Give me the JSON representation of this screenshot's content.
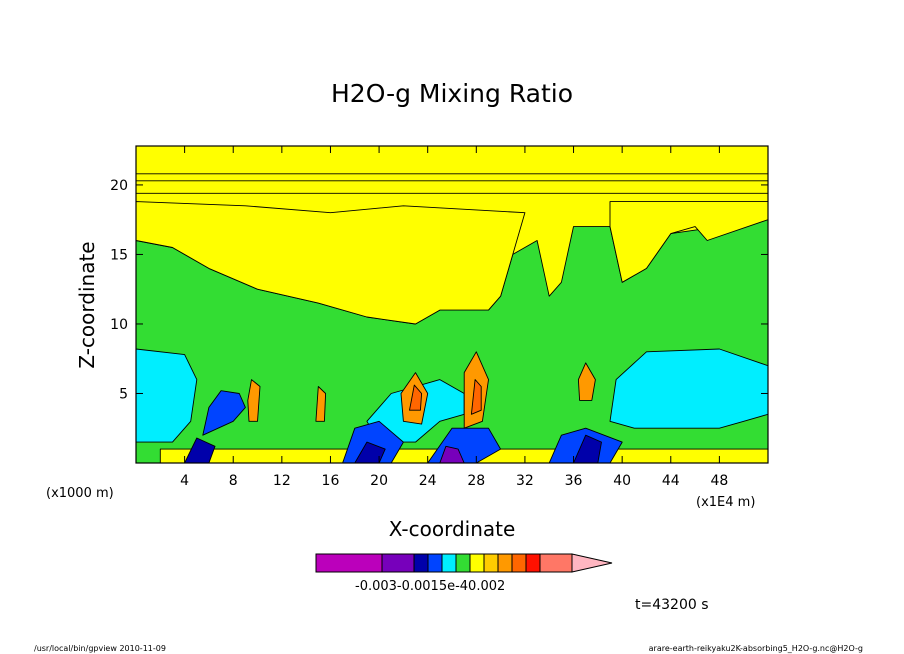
{
  "chart_data": {
    "type": "heatmap",
    "title": "H2O-g Mixing Ratio",
    "xlabel": "X-coordinate",
    "ylabel": "Z-coordinate",
    "x_unit_left": "(x1000 m)",
    "x_unit_right": "(x1E4 m)",
    "xlim": [
      0,
      52
    ],
    "ylim": [
      0,
      22.8
    ],
    "xticks": [
      4,
      8,
      12,
      16,
      20,
      24,
      28,
      32,
      36,
      40,
      44,
      48
    ],
    "yticks": [
      5,
      10,
      15,
      20
    ],
    "colorbar": {
      "label": "-0.003-0.0015e-40.002",
      "colors": [
        "#bb00bb",
        "#7700bb",
        "#0000aa",
        "#0044ff",
        "#00eeff",
        "#33dd33",
        "#ffff00",
        "#ffcc00",
        "#ff9900",
        "#ff6600",
        "#ff1100",
        "#ff7766",
        "#ffb6c1"
      ]
    },
    "regions": [
      {
        "level": "green",
        "color": "#33dd33",
        "polygon": [
          [
            0,
            0
          ],
          [
            52,
            0
          ],
          [
            52,
            17.5
          ],
          [
            44,
            16.5
          ],
          [
            42,
            14
          ],
          [
            40,
            13
          ],
          [
            39,
            17
          ],
          [
            36,
            17
          ],
          [
            35,
            13
          ],
          [
            34,
            12
          ],
          [
            33,
            16
          ],
          [
            31,
            15
          ],
          [
            30,
            12
          ],
          [
            29,
            11
          ],
          [
            25,
            11
          ],
          [
            23,
            10
          ],
          [
            19,
            10.5
          ],
          [
            15,
            11.5
          ],
          [
            10,
            12.5
          ],
          [
            6,
            14
          ],
          [
            3,
            15.5
          ],
          [
            0,
            16
          ]
        ]
      },
      {
        "level": "yellow-upper",
        "color": "#ffff00",
        "polygon": [
          [
            0,
            16
          ],
          [
            3,
            15.5
          ],
          [
            6,
            14
          ],
          [
            10,
            12.5
          ],
          [
            15,
            11.5
          ],
          [
            19,
            10.5
          ],
          [
            23,
            10
          ],
          [
            25,
            11
          ],
          [
            29,
            11
          ],
          [
            30,
            12
          ],
          [
            31,
            15
          ],
          [
            32,
            18
          ],
          [
            22,
            18.5
          ],
          [
            16,
            18
          ],
          [
            9,
            18.5
          ],
          [
            0,
            18.8
          ]
        ]
      },
      {
        "level": "yellow-band",
        "color": "#ffff00",
        "polygon": [
          [
            0,
            19.4
          ],
          [
            52,
            19.4
          ],
          [
            52,
            20.3
          ],
          [
            0,
            20.3
          ]
        ]
      },
      {
        "level": "yellow-top",
        "color": "#ffff00",
        "polygon": [
          [
            0,
            20.8
          ],
          [
            52,
            20.8
          ],
          [
            52,
            22.8
          ],
          [
            0,
            22.8
          ]
        ]
      },
      {
        "level": "yellow-right",
        "color": "#ffff00",
        "polygon": [
          [
            39,
            17
          ],
          [
            40,
            13
          ],
          [
            42,
            14
          ],
          [
            44,
            16.5
          ],
          [
            46,
            17
          ],
          [
            47,
            16
          ],
          [
            52,
            17.5
          ],
          [
            52,
            18.8
          ],
          [
            39,
            18.8
          ]
        ]
      },
      {
        "level": "yellow-low",
        "color": "#ffff00",
        "polygon": [
          [
            2,
            0
          ],
          [
            52,
            0
          ],
          [
            52,
            1
          ],
          [
            2,
            1
          ]
        ]
      },
      {
        "level": "cyan-left",
        "color": "#00eeff",
        "polygon": [
          [
            0,
            1.5
          ],
          [
            3,
            1.5
          ],
          [
            4.5,
            3
          ],
          [
            5,
            6
          ],
          [
            4,
            7.8
          ],
          [
            0,
            8.2
          ]
        ]
      },
      {
        "level": "cyan-right",
        "color": "#00eeff",
        "polygon": [
          [
            39,
            3
          ],
          [
            41,
            2.5
          ],
          [
            48,
            2.5
          ],
          [
            50,
            3
          ],
          [
            52,
            3.5
          ],
          [
            52,
            7
          ],
          [
            48,
            8.2
          ],
          [
            42,
            8
          ],
          [
            39.5,
            6
          ]
        ]
      },
      {
        "level": "cyan-mid",
        "color": "#00eeff",
        "polygon": [
          [
            20,
            1.5
          ],
          [
            23,
            1.5
          ],
          [
            25,
            3
          ],
          [
            27,
            3.5
          ],
          [
            27,
            5
          ],
          [
            25,
            6
          ],
          [
            21,
            5
          ],
          [
            19,
            3
          ]
        ]
      },
      {
        "level": "blue-1",
        "color": "#0044ff",
        "polygon": [
          [
            5.5,
            2
          ],
          [
            8,
            3
          ],
          [
            9,
            4
          ],
          [
            8.5,
            5
          ],
          [
            7,
            5.2
          ],
          [
            6,
            4
          ]
        ]
      },
      {
        "level": "blue-2",
        "color": "#0044ff",
        "polygon": [
          [
            17,
            0
          ],
          [
            21,
            0
          ],
          [
            22,
            1.5
          ],
          [
            20,
            3
          ],
          [
            18,
            2.5
          ]
        ]
      },
      {
        "level": "blue-3",
        "color": "#0044ff",
        "polygon": [
          [
            24,
            0
          ],
          [
            28,
            0
          ],
          [
            30,
            1
          ],
          [
            29,
            2.5
          ],
          [
            26,
            2.5
          ]
        ]
      },
      {
        "level": "blue-4",
        "color": "#0044ff",
        "polygon": [
          [
            34,
            0
          ],
          [
            39,
            0
          ],
          [
            40,
            1.5
          ],
          [
            37,
            2.5
          ],
          [
            35,
            2
          ]
        ]
      },
      {
        "level": "navy-1",
        "color": "#0000aa",
        "polygon": [
          [
            4,
            0
          ],
          [
            6,
            0
          ],
          [
            6.5,
            1.2
          ],
          [
            5,
            1.8
          ]
        ]
      },
      {
        "level": "navy-2",
        "color": "#0000aa",
        "polygon": [
          [
            18,
            0
          ],
          [
            20,
            0
          ],
          [
            20.5,
            1
          ],
          [
            19,
            1.5
          ]
        ]
      },
      {
        "level": "navy-3",
        "color": "#0000aa",
        "polygon": [
          [
            36,
            0
          ],
          [
            38,
            0
          ],
          [
            38.3,
            1.5
          ],
          [
            37,
            2
          ]
        ]
      },
      {
        "level": "purple-1",
        "color": "#7700bb",
        "polygon": [
          [
            25,
            0
          ],
          [
            27,
            0
          ],
          [
            26.5,
            1
          ],
          [
            25.5,
            1.2
          ]
        ]
      },
      {
        "level": "orange-1",
        "color": "#ff9900",
        "polygon": [
          [
            22,
            3
          ],
          [
            23.5,
            2.8
          ],
          [
            24,
            5
          ],
          [
            23,
            6.5
          ],
          [
            21.8,
            5
          ]
        ]
      },
      {
        "level": "orange-2",
        "color": "#ff9900",
        "polygon": [
          [
            27,
            2.5
          ],
          [
            28.5,
            3
          ],
          [
            29,
            6
          ],
          [
            28,
            8
          ],
          [
            27,
            6.5
          ]
        ]
      },
      {
        "level": "orange-3",
        "color": "#ff9900",
        "polygon": [
          [
            36.5,
            4.5
          ],
          [
            37.5,
            4.5
          ],
          [
            37.8,
            6
          ],
          [
            37,
            7.2
          ],
          [
            36.4,
            6
          ]
        ]
      },
      {
        "level": "orange-4",
        "color": "#ff9900",
        "polygon": [
          [
            9.3,
            3
          ],
          [
            10,
            3
          ],
          [
            10.2,
            5.5
          ],
          [
            9.5,
            6
          ],
          [
            9.2,
            4.5
          ]
        ]
      },
      {
        "level": "orange-5",
        "color": "#ff9900",
        "polygon": [
          [
            14.8,
            3
          ],
          [
            15.5,
            3
          ],
          [
            15.6,
            5
          ],
          [
            15,
            5.5
          ]
        ]
      },
      {
        "level": "red-1",
        "color": "#ff6600",
        "polygon": [
          [
            22.5,
            3.8
          ],
          [
            23.4,
            3.8
          ],
          [
            23.5,
            5
          ],
          [
            22.9,
            5.6
          ]
        ]
      },
      {
        "level": "red-2",
        "color": "#ff6600",
        "polygon": [
          [
            27.6,
            3.5
          ],
          [
            28.4,
            3.8
          ],
          [
            28.4,
            5.5
          ],
          [
            27.9,
            6
          ]
        ]
      }
    ]
  },
  "footer": {
    "time_label": "t=43200 s",
    "left_path": "/usr/local/bin/gpview  2010-11-09",
    "right_path": "arare-earth-reikyaku2K-absorbing5_H2O-g.nc@H2O-g"
  }
}
